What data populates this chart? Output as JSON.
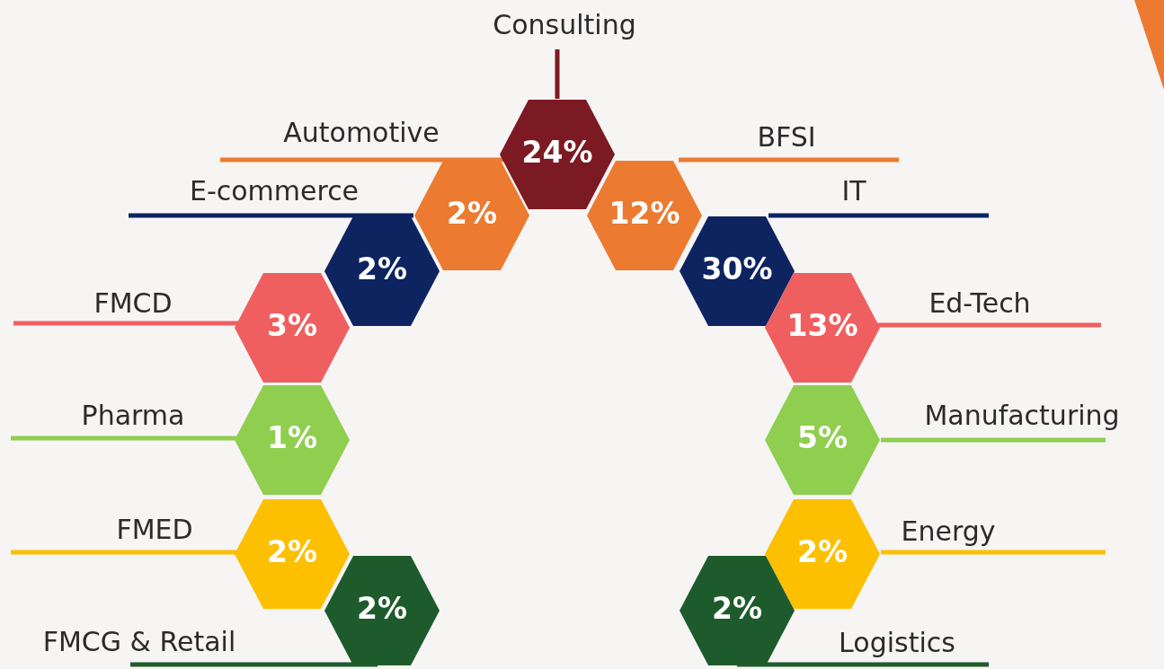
{
  "chart_data": {
    "type": "other",
    "categories": [
      "FMCG & Retail",
      "FMED",
      "Pharma",
      "FMCD",
      "E-commerce",
      "Automotive",
      "Consulting",
      "BFSI",
      "IT",
      "Ed-Tech",
      "Manufacturing",
      "Energy",
      "Logistics"
    ],
    "values": [
      2,
      2,
      1,
      3,
      2,
      2,
      24,
      12,
      30,
      13,
      5,
      2,
      2
    ],
    "value_labels": [
      "2%",
      "2%",
      "1%",
      "3%",
      "2%",
      "2%",
      "24%",
      "12%",
      "30%",
      "13%",
      "5%",
      "2%",
      "2%"
    ],
    "colors": [
      "#1e5b2c",
      "#fcc000",
      "#8fce4e",
      "#ef5f5f",
      "#0d2460",
      "#ec7a30",
      "#7b1a22",
      "#ec7a30",
      "#0d2460",
      "#ef5f5f",
      "#8fce4e",
      "#fcc000",
      "#1e5b2c"
    ]
  }
}
